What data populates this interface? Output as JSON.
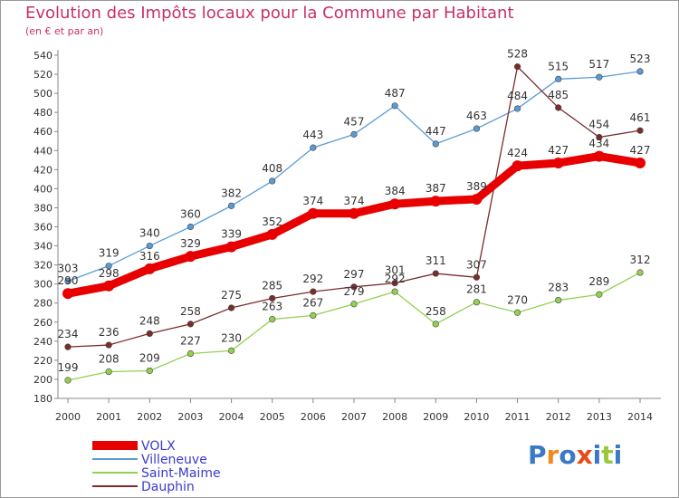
{
  "title": "Evolution des Impôts locaux pour la Commune par Habitant",
  "subtitle": "(en € et par an)",
  "logo": {
    "letters": [
      "P",
      "r",
      "o",
      "x",
      "i",
      "t",
      "i"
    ],
    "colors": [
      "#3a78c8",
      "#f08a20",
      "#3a78c8",
      "#e84a1a",
      "#3a78c8",
      "#9ac83a",
      "#3a78c8"
    ]
  },
  "chart_data": {
    "type": "line",
    "title": "Evolution des Impôts locaux pour la Commune par Habitant",
    "ylabel": "(en € et par an)",
    "xlabel": "",
    "x": [
      "2000",
      "2001",
      "2002",
      "2003",
      "2004",
      "2005",
      "2006",
      "2007",
      "2008",
      "2009",
      "2010",
      "2011",
      "2012",
      "2013",
      "2014"
    ],
    "ylim": [
      180,
      540
    ],
    "yticks": [
      180,
      200,
      220,
      240,
      260,
      280,
      300,
      320,
      340,
      360,
      380,
      400,
      420,
      440,
      460,
      480,
      500,
      520,
      540
    ],
    "grid": false,
    "legend_position": "bottom-left",
    "series": [
      {
        "name": "VOLX",
        "color": "#e80000",
        "values": [
          290,
          298,
          316,
          329,
          339,
          352,
          374,
          374,
          384,
          387,
          389,
          424,
          427,
          434,
          427
        ]
      },
      {
        "name": "Villeneuve",
        "color": "#5b9bd5",
        "values": [
          303,
          319,
          340,
          360,
          382,
          408,
          443,
          457,
          487,
          447,
          463,
          484,
          515,
          517,
          523
        ]
      },
      {
        "name": "Saint-Maime",
        "color": "#92d050",
        "values": [
          199,
          208,
          209,
          227,
          230,
          263,
          267,
          279,
          292,
          258,
          281,
          270,
          283,
          289,
          312
        ]
      },
      {
        "name": "Dauphin",
        "color": "#7b2c2c",
        "values": [
          234,
          236,
          248,
          258,
          275,
          285,
          292,
          297,
          301,
          311,
          307,
          528,
          485,
          454,
          461
        ]
      }
    ]
  }
}
